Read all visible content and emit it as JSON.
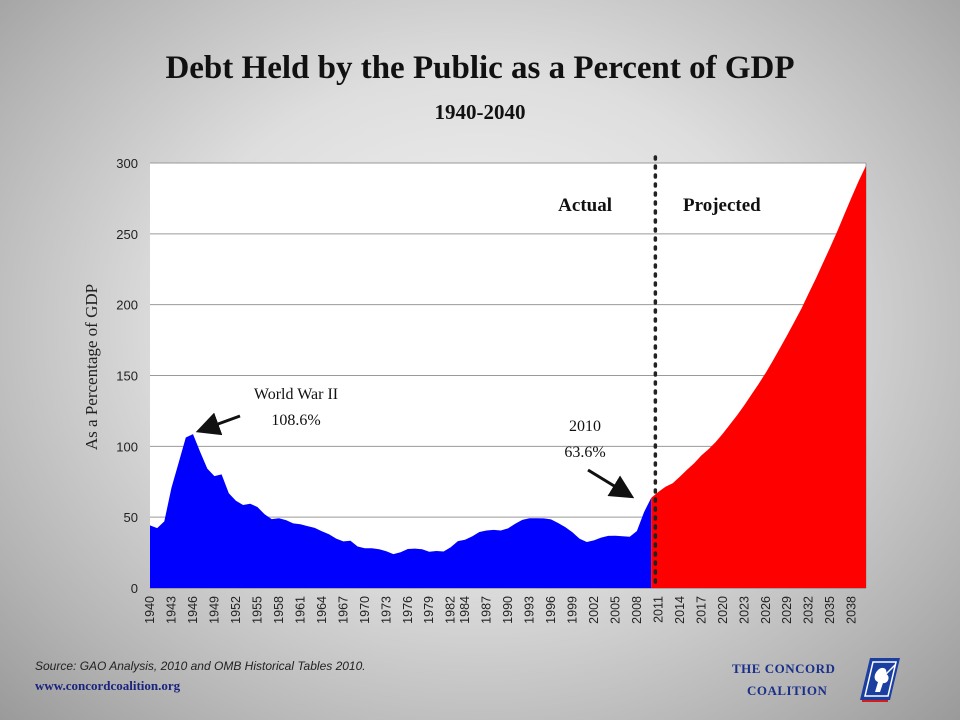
{
  "chart_data": {
    "type": "area",
    "title": "Debt Held by the Public as a Percent of GDP",
    "subtitle": "1940-2040",
    "xlabel": "",
    "ylabel": "As a Percentage of GDP",
    "xlim": [
      1940,
      2040
    ],
    "ylim": [
      0,
      300
    ],
    "y_ticks": [
      0,
      50,
      100,
      150,
      200,
      250,
      300
    ],
    "x_tick_labels": [
      "1940",
      "1943",
      "1946",
      "1949",
      "1952",
      "1955",
      "1958",
      "1961",
      "1964",
      "1967",
      "1970",
      "1973",
      "1976",
      "1979",
      "1982",
      "1984",
      "1987",
      "1990",
      "1993",
      "1996",
      "1999",
      "2002",
      "2005",
      "2008",
      "2011",
      "2014",
      "2017",
      "2020",
      "2023",
      "2026",
      "2029",
      "2032",
      "2035",
      "2038"
    ],
    "grid": true,
    "divider_year": 2011,
    "region_labels": {
      "actual": "Actual",
      "projected": "Projected"
    },
    "annotations": [
      {
        "line1": "World War II",
        "line2": "108.6%"
      },
      {
        "line1": "2010",
        "line2": "63.6%"
      }
    ],
    "series": [
      {
        "name": "Actual",
        "color": "#0000ff",
        "x": [
          1940,
          1941,
          1942,
          1943,
          1944,
          1945,
          1946,
          1947,
          1948,
          1949,
          1950,
          1951,
          1952,
          1953,
          1954,
          1955,
          1956,
          1957,
          1958,
          1959,
          1960,
          1961,
          1962,
          1963,
          1964,
          1965,
          1966,
          1967,
          1968,
          1969,
          1970,
          1971,
          1972,
          1973,
          1974,
          1975,
          1976,
          1977,
          1978,
          1979,
          1980,
          1981,
          1982,
          1983,
          1984,
          1985,
          1986,
          1987,
          1988,
          1989,
          1990,
          1991,
          1992,
          1993,
          1994,
          1995,
          1996,
          1997,
          1998,
          1999,
          2000,
          2001,
          2002,
          2003,
          2004,
          2005,
          2006,
          2007,
          2008,
          2009,
          2010
        ],
        "values": [
          44.2,
          42.3,
          47.0,
          70.9,
          88.3,
          106.2,
          108.6,
          96.2,
          84.3,
          79.0,
          80.2,
          66.9,
          61.6,
          58.6,
          59.5,
          57.2,
          52.0,
          48.6,
          49.2,
          47.9,
          45.6,
          45.0,
          43.7,
          42.4,
          40.0,
          37.9,
          34.9,
          32.9,
          33.3,
          29.3,
          28.0,
          28.1,
          27.4,
          26.0,
          23.9,
          25.3,
          27.5,
          27.8,
          27.4,
          25.6,
          26.1,
          25.8,
          28.7,
          33.1,
          34.0,
          36.4,
          39.5,
          40.6,
          41.0,
          40.6,
          42.1,
          45.3,
          48.1,
          49.3,
          49.2,
          49.1,
          48.4,
          45.9,
          43.0,
          39.4,
          34.7,
          32.5,
          33.6,
          35.6,
          36.8,
          36.9,
          36.5,
          36.2,
          40.2,
          53.5,
          63.6
        ]
      },
      {
        "name": "Projected",
        "color": "#ff0000",
        "x": [
          2010,
          2011,
          2012,
          2013,
          2014,
          2015,
          2016,
          2017,
          2018,
          2019,
          2020,
          2021,
          2022,
          2023,
          2024,
          2025,
          2026,
          2027,
          2028,
          2029,
          2030,
          2031,
          2032,
          2033,
          2034,
          2035,
          2036,
          2037,
          2038,
          2039,
          2040
        ],
        "values": [
          63.6,
          67.8,
          71.5,
          74.0,
          78.5,
          83.5,
          88.0,
          93.5,
          98.0,
          103.0,
          109.0,
          115.5,
          122.0,
          129.0,
          136.5,
          144.0,
          152.0,
          160.5,
          169.5,
          178.5,
          188.0,
          197.5,
          208.0,
          218.5,
          229.5,
          240.5,
          252.0,
          264.0,
          276.0,
          287.5,
          298.0
        ]
      }
    ]
  },
  "source": "Source:  GAO Analysis, 2010 and OMB Historical Tables 2010.",
  "website": "www.concordcoalition.org",
  "logo": {
    "line1": "THE CONCORD",
    "line2": "COALITION",
    "icon": "minuteman-emblem-icon"
  }
}
